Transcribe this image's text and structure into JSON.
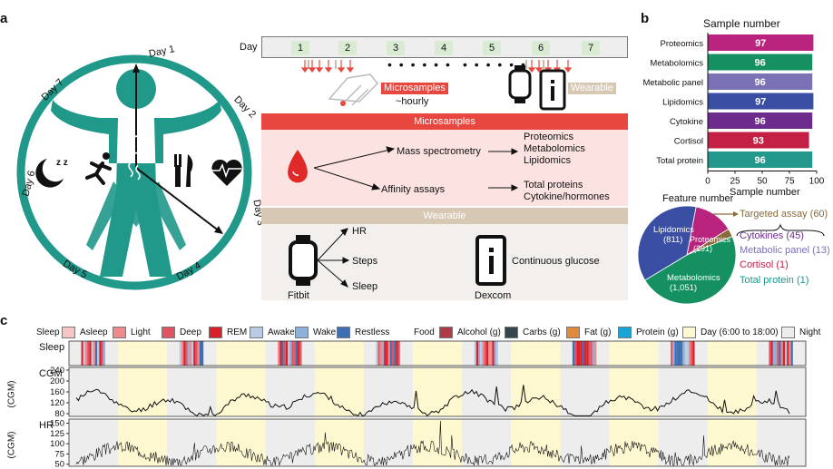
{
  "panels": {
    "a": "a",
    "b": "b",
    "c": "c"
  },
  "panel_a": {
    "circle_days": [
      "Day 1",
      "Day 2",
      "Day 3",
      "Day 4",
      "Day 5",
      "Day 6",
      "Day 7"
    ],
    "day_header": "Day",
    "days": [
      "1",
      "2",
      "3",
      "4",
      "5",
      "6",
      "7"
    ],
    "dots": "• • • • • •",
    "microsamples_tag": "Microsamples",
    "hourly": "~hourly",
    "wearable_tag": "Wearable",
    "microsamples_header": "Microsamples",
    "mass_spec": "Mass spectrometry",
    "affinity": "Affinity assays",
    "ms_outputs": [
      "Proteomics",
      "Metabolomics",
      "Lipidomics"
    ],
    "aa_outputs": [
      "Total proteins",
      "Cytokine/hormones"
    ],
    "wearable_header": "Wearable",
    "fitbit_outputs": [
      "HR",
      "Steps",
      "Sleep"
    ],
    "fitbit": "Fitbit",
    "dexcom_output": "Continuous glucose",
    "dexcom": "Dexcom",
    "colors": {
      "teal": "#20988a",
      "red": "#e8473f",
      "pink": "#fde2e2",
      "tan": "#d7c8b3"
    }
  },
  "panel_b": {
    "title": "Sample number",
    "xlabel": "Sample number",
    "ticks": [
      "0",
      "25",
      "50",
      "75",
      "100"
    ],
    "feature_title": "Feature number",
    "targeted_label": "Targeted assay (60)",
    "pie_labels": {
      "lipidomics": "Lipidomics",
      "lipidomics_n": "(811)",
      "proteomics": "Proteomics",
      "proteomics_n": "(291)",
      "metabolomics": "Metabolomics",
      "metabolomics_n": "(1,051)"
    },
    "targeted_items": [
      "Cytokines (45)",
      "Metabolic panel (13)",
      "Cortisol (1)",
      "Total protein (1)"
    ]
  },
  "chart_data": [
    {
      "type": "bar",
      "orientation": "horizontal",
      "title": "Sample number",
      "xlabel": "Sample number",
      "xlim": [
        0,
        100
      ],
      "categories": [
        "Proteomics",
        "Metabolomics",
        "Metabolic panel",
        "Lipidomics",
        "Cytokine",
        "Cortisol",
        "Total protein"
      ],
      "values": [
        97,
        96,
        96,
        97,
        96,
        93,
        96
      ],
      "colors": [
        "#b8237e",
        "#159060",
        "#7a72b5",
        "#3a4fa3",
        "#6d2c8c",
        "#c42046",
        "#22978c"
      ]
    },
    {
      "type": "pie",
      "title": "Feature number",
      "categories": [
        "Lipidomics",
        "Metabolomics",
        "Proteomics",
        "Targeted assay"
      ],
      "values": [
        811,
        1051,
        291,
        60
      ],
      "colors": [
        "#3a4fa3",
        "#159060",
        "#b8237e",
        "#8a6a3a"
      ]
    },
    {
      "type": "line",
      "name": "CGM",
      "ylabel": "(CGM)",
      "yticks": [
        80,
        120,
        160,
        200,
        240
      ],
      "ylim": [
        70,
        250
      ]
    },
    {
      "type": "line",
      "name": "HR",
      "ylabel": "(CGM)",
      "yticks": [
        50,
        75,
        100,
        125,
        150
      ],
      "ylim": [
        45,
        160
      ]
    }
  ],
  "panel_c": {
    "legend_sleep_title": "Sleep",
    "legend_sleep": [
      {
        "label": "Asleep",
        "color": "#f7c6c4"
      },
      {
        "label": "Light",
        "color": "#ee8a8a"
      },
      {
        "label": "Deep",
        "color": "#e05462"
      },
      {
        "label": "REM",
        "color": "#d9202a"
      },
      {
        "label": "Awake",
        "color": "#b9cbe4"
      },
      {
        "label": "Wake",
        "color": "#8fb0d8"
      },
      {
        "label": "Restless",
        "color": "#3f6fb0"
      }
    ],
    "legend_food_title": "Food",
    "legend_food": [
      {
        "label": "Alcohol (g)",
        "color": "#b03a48"
      },
      {
        "label": "Carbs (g)",
        "color": "#34474f"
      },
      {
        "label": "Fat (g)",
        "color": "#e08a3c"
      },
      {
        "label": "Protein (g)",
        "color": "#1aa3d6"
      }
    ],
    "legend_day": {
      "label": "Day (6:00 to 18:00)",
      "color": "#fdf8d0"
    },
    "legend_night": {
      "label": "Night",
      "color": "#ededed"
    },
    "sleep_track": "Sleep",
    "cgm_track": "CGM",
    "hr_track": "HR",
    "cgm_yticks": [
      "240",
      "200",
      "160",
      "120",
      "80"
    ],
    "hr_yticks": [
      "150",
      "125",
      "100",
      "75",
      "50"
    ],
    "cgm_ylabel": "(CGM)",
    "hr_ylabel": "(CGM)"
  }
}
